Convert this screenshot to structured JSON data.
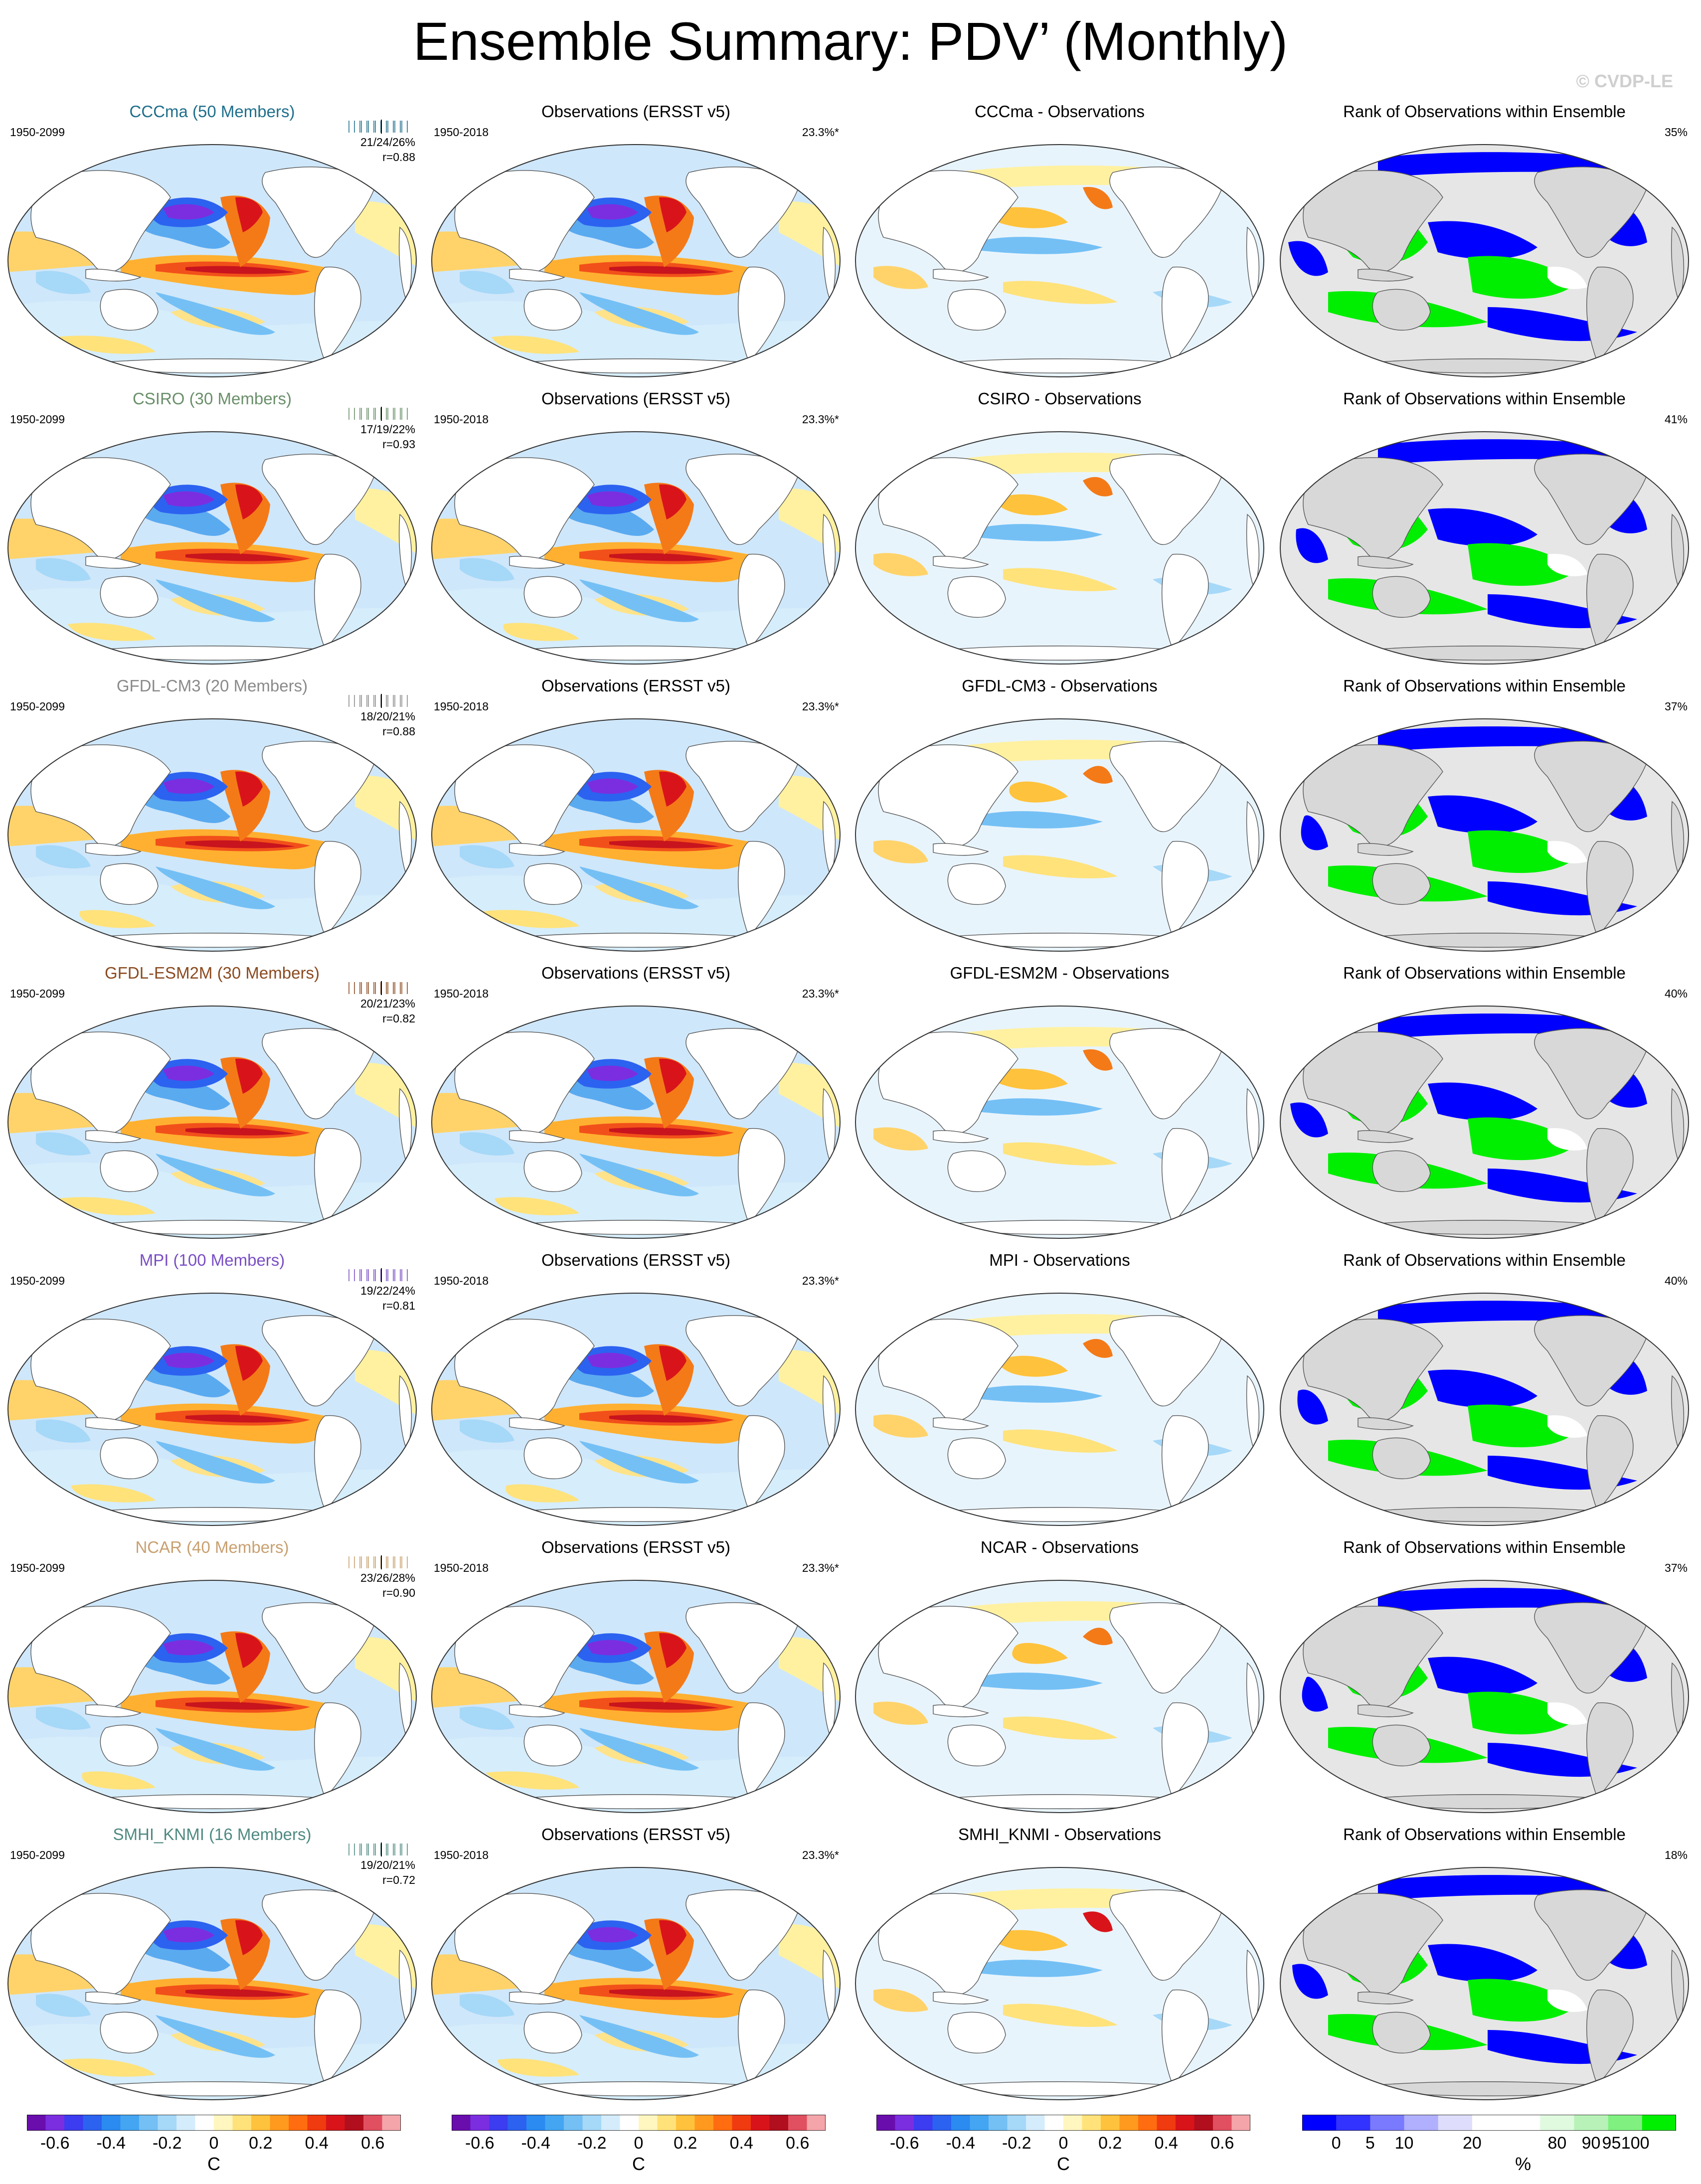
{
  "title": "Ensemble Summary: PDV’ (Monthly)",
  "watermark": "© CVDP-LE",
  "obs_title": "Observations (ERSST v5)",
  "obs_period": "1950-2018",
  "obs_pct": "23.3%*",
  "rank_title": "Rank of Observations within Ensemble",
  "model_period": "1950-2099",
  "models": [
    {
      "title": "CCCma (50 Members)",
      "color": "#1f6f8b",
      "stats1": "21/24/26%",
      "stats2": "r=0.88",
      "diff_title": "CCCma - Observations",
      "rank_pct": "35%"
    },
    {
      "title": "CSIRO (30 Members)",
      "color": "#6a8f6a",
      "stats1": "17/19/22%",
      "stats2": "r=0.93",
      "diff_title": "CSIRO - Observations",
      "rank_pct": "41%"
    },
    {
      "title": "GFDL-CM3 (20 Members)",
      "color": "#8a8a8a",
      "stats1": "18/20/21%",
      "stats2": "r=0.88",
      "diff_title": "GFDL-CM3 - Observations",
      "rank_pct": "37%"
    },
    {
      "title": "GFDL-ESM2M (30 Members)",
      "color": "#8b4a1f",
      "stats1": "20/21/23%",
      "stats2": "r=0.82",
      "diff_title": "GFDL-ESM2M - Observations",
      "rank_pct": "40%"
    },
    {
      "title": "MPI (100 Members)",
      "color": "#7a4fc4",
      "stats1": "19/22/24%",
      "stats2": "r=0.81",
      "diff_title": "MPI - Observations",
      "rank_pct": "40%"
    },
    {
      "title": "NCAR (40 Members)",
      "color": "#c8a070",
      "stats1": "23/26/28%",
      "stats2": "r=0.90",
      "diff_title": "NCAR - Observations",
      "rank_pct": "37%"
    },
    {
      "title": "SMHI_KNMI (16 Members)",
      "color": "#4f8a82",
      "stats1": "19/20/21%",
      "stats2": "r=0.72",
      "diff_title": "SMHI_KNMI - Observations",
      "rank_pct": "18%"
    }
  ],
  "colorbar_sst": {
    "colors": [
      "#6a0dad",
      "#7b2ee0",
      "#3c3cf0",
      "#2c62f0",
      "#2b8bf0",
      "#44a6f2",
      "#74c0f5",
      "#a6d8f8",
      "#d4ecfb",
      "#ffffff",
      "#fff6c0",
      "#ffe27a",
      "#ffc23c",
      "#ff9a1e",
      "#ff6d10",
      "#f03a0f",
      "#d8141a",
      "#b10e1e",
      "#e05060",
      "#f4a5a9"
    ],
    "labels": [
      "-0.6",
      "-0.4",
      "-0.2",
      "0",
      "0.2",
      "0.4",
      "0.6"
    ],
    "unit": "C"
  },
  "colorbar_rank": {
    "colors": [
      "#0000ff",
      "#3333ff",
      "#7a7aff",
      "#b0b0ff",
      "#dedefc",
      "#ffffff",
      "#ffffff",
      "#e0fae0",
      "#b8f2b8",
      "#80f080",
      "#00ee00"
    ],
    "labels": [
      "0",
      "5",
      "10",
      "20",
      "80",
      "90",
      "95",
      "100"
    ],
    "unit": "%"
  }
}
